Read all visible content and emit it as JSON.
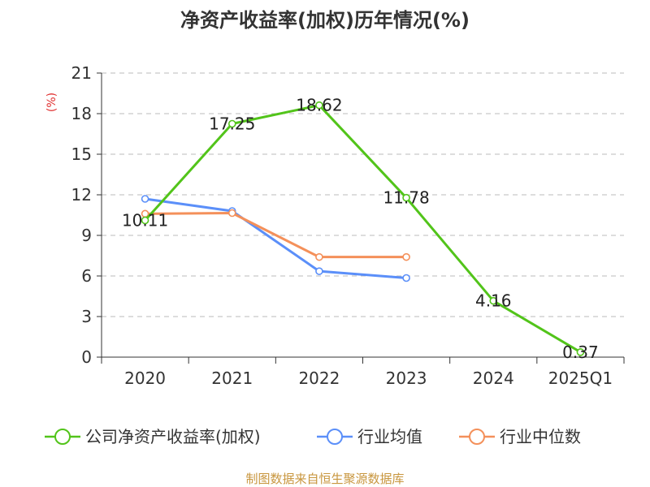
{
  "chart_data": {
    "type": "line",
    "title": "净资产收益率(加权)历年情况(%)",
    "ylabel": "(%)",
    "categories": [
      "2020",
      "2021",
      "2022",
      "2023",
      "2024",
      "2025Q1"
    ],
    "ylim": [
      0,
      21
    ],
    "yticks": [
      "0",
      "3",
      "6",
      "9",
      "12",
      "15",
      "18",
      "21"
    ],
    "grid": true,
    "legend_position": "bottom",
    "series": [
      {
        "name": "公司净资产收益率(加权)",
        "color": "#52c41a",
        "values": [
          10.11,
          17.25,
          18.62,
          11.78,
          4.16,
          0.37
        ],
        "labels": [
          "10.11",
          "17.25",
          "18.62",
          "11.78",
          "4.16",
          "0.37"
        ]
      },
      {
        "name": "行业均值",
        "color": "#5b8ff9",
        "values": [
          11.7,
          10.8,
          6.35,
          5.85,
          null,
          null
        ]
      },
      {
        "name": "行业中位数",
        "color": "#f4905a",
        "values": [
          10.6,
          10.65,
          7.4,
          7.4,
          null,
          null
        ]
      }
    ]
  },
  "source": "制图数据来自恒生聚源数据库"
}
